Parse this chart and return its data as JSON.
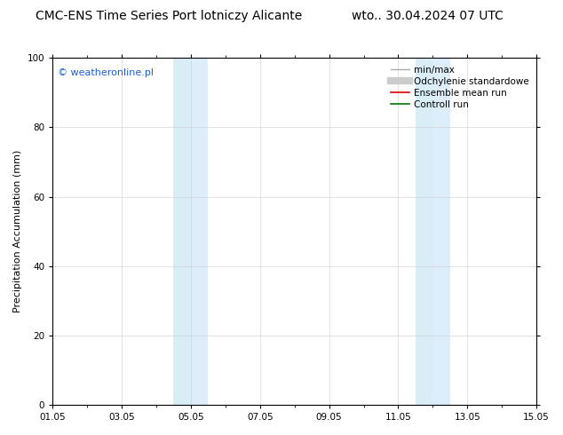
{
  "title_left": "CMC-ENS Time Series Port lotniczy Alicante",
  "title_right": "wto.. 30.04.2024 07 UTC",
  "ylabel": "Precipitation Accumulation (mm)",
  "ylim": [
    0,
    100
  ],
  "xlim": [
    0,
    14
  ],
  "xtick_labels": [
    "01.05",
    "03.05",
    "05.05",
    "07.05",
    "09.05",
    "11.05",
    "13.05",
    "15.05"
  ],
  "xtick_positions": [
    0,
    2,
    4,
    6,
    8,
    10,
    12,
    14
  ],
  "ytick_labels": [
    "0",
    "20",
    "40",
    "60",
    "80",
    "100"
  ],
  "ytick_positions": [
    0,
    20,
    40,
    60,
    80,
    100
  ],
  "shade_bands": [
    {
      "x_start": 3.5,
      "x_end": 4.0,
      "color": "#d9edf7"
    },
    {
      "x_start": 4.0,
      "x_end": 4.5,
      "color": "#ddeefa"
    },
    {
      "x_start": 10.5,
      "x_end": 11.0,
      "color": "#d9edf7"
    },
    {
      "x_start": 11.0,
      "x_end": 11.5,
      "color": "#ddeefa"
    }
  ],
  "watermark": "© weatheronline.pl",
  "watermark_color": "#1a5fd6",
  "legend_items": [
    {
      "label": "min/max",
      "color": "#aaaaaa",
      "lw": 1.0
    },
    {
      "label": "Odchylenie standardowe",
      "color": "#cccccc",
      "lw": 6
    },
    {
      "label": "Ensemble mean run",
      "color": "#dd0000",
      "lw": 1.2
    },
    {
      "label": "Controll run",
      "color": "#007700",
      "lw": 1.2
    }
  ],
  "bg_color": "#ffffff",
  "grid_color": "#cccccc",
  "title_fontsize": 10,
  "ylabel_fontsize": 8,
  "tick_fontsize": 7.5,
  "legend_fontsize": 7.5,
  "watermark_fontsize": 8
}
